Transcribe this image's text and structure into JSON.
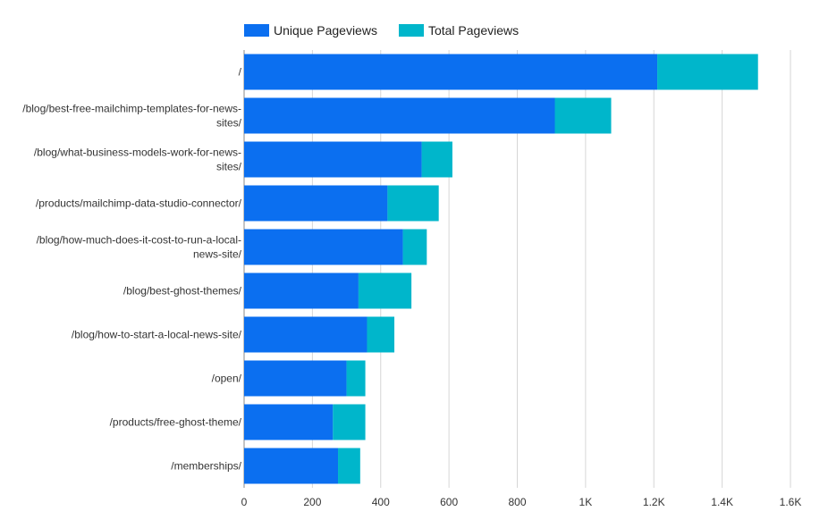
{
  "chart_data": {
    "type": "bar",
    "orientation": "horizontal",
    "stacked": true,
    "categories": [
      "/",
      "/blog/best-free-mailchimp-templates-for-news-sites/",
      "/blog/what-business-models-work-for-news-sites/",
      "/products/mailchimp-data-studio-connector/",
      "/blog/how-much-does-it-cost-to-run-a-local-news-site/",
      "/blog/best-ghost-themes/",
      "/blog/how-to-start-a-local-news-site/",
      "/open/",
      "/products/free-ghost-theme/",
      "/memberships/"
    ],
    "category_label_lines": [
      [
        "/"
      ],
      [
        "/blog/best-free-mailchimp-templates-for-news-",
        "sites/"
      ],
      [
        "/blog/what-business-models-work-for-news-",
        "sites/"
      ],
      [
        "/products/mailchimp-data-studio-connector/"
      ],
      [
        "/blog/how-much-does-it-cost-to-run-a-local-",
        "news-site/"
      ],
      [
        "/blog/best-ghost-themes/"
      ],
      [
        "/blog/how-to-start-a-local-news-site/"
      ],
      [
        "/open/"
      ],
      [
        "/products/free-ghost-theme/"
      ],
      [
        "/memberships/"
      ]
    ],
    "series": [
      {
        "name": "Unique Pageviews",
        "color": "#0b6ff0",
        "values": [
          1210,
          910,
          520,
          420,
          465,
          335,
          360,
          300,
          260,
          275
        ]
      },
      {
        "name": "Total Pageviews",
        "color": "#00b6cb",
        "values": [
          295,
          165,
          90,
          150,
          70,
          155,
          80,
          55,
          95,
          65
        ]
      }
    ],
    "xlim": [
      0,
      1600
    ],
    "x_ticks": [
      0,
      200,
      400,
      600,
      800,
      1000,
      1200,
      1400,
      1600
    ],
    "x_tick_labels": [
      "0",
      "200",
      "400",
      "600",
      "800",
      "1K",
      "1.2K",
      "1.4K",
      "1.6K"
    ],
    "grid": true,
    "legend_position": "top-left",
    "title": "",
    "xlabel": "",
    "ylabel": ""
  }
}
